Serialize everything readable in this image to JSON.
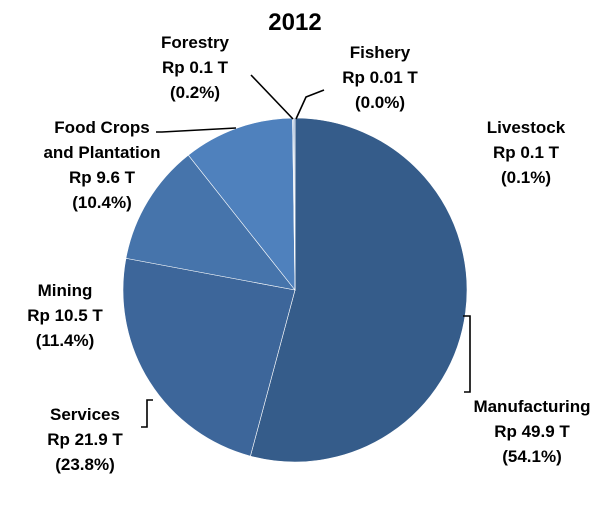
{
  "chart_data": {
    "type": "pie",
    "title": "2012",
    "unit_prefix": "Rp",
    "unit_suffix": "T",
    "slices": [
      {
        "name": "Manufacturing",
        "value": 49.9,
        "value_label": "Rp 49.9 T",
        "percent_label": "(54.1%)",
        "color": "#355C8A"
      },
      {
        "name": "Services",
        "value": 21.9,
        "value_label": "Rp 21.9 T",
        "percent_label": "(23.8%)",
        "color": "#3D669A"
      },
      {
        "name": "Mining",
        "value": 10.5,
        "value_label": "Rp 10.5 T",
        "percent_label": "(11.4%)",
        "color": "#4674AB"
      },
      {
        "name": "Food Crops and Plantation",
        "name_lines": [
          "Food  Crops",
          "and Plantation"
        ],
        "value": 9.6,
        "value_label": "Rp 9.6 T",
        "percent_label": "(10.4%)",
        "color": "#4F81BD"
      },
      {
        "name": "Forestry",
        "value": 0.1,
        "value_label": "Rp 0.1 T",
        "percent_label": "(0.2%)",
        "color": "#8FAACF"
      },
      {
        "name": "Fishery",
        "value": 0.01,
        "value_label": "Rp 0.01 T",
        "percent_label": "(0.0%)",
        "color": "#A9BCD8"
      },
      {
        "name": "Livestock",
        "value": 0.1,
        "value_label": "Rp 0.1 T",
        "percent_label": "(0.1%)",
        "color": "#7D9CC6"
      }
    ]
  }
}
